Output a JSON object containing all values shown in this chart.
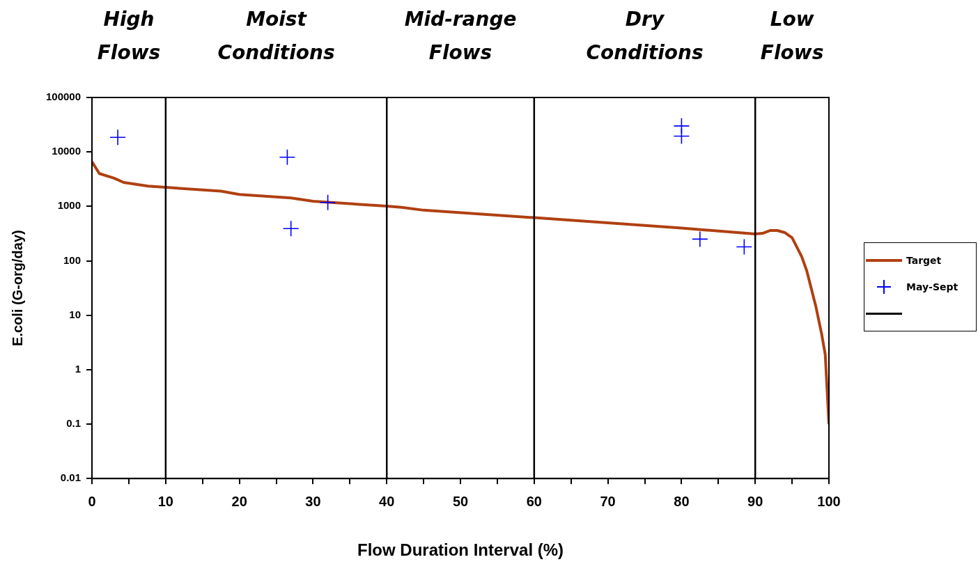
{
  "chart_data": {
    "type": "line",
    "xlabel": "Flow Duration Interval (%)",
    "ylabel": "E.coli (G-org/day)",
    "log": "y",
    "xlim": [
      0,
      100
    ],
    "ylim": [
      0.01,
      100000
    ],
    "xticks": [
      0,
      {
        "value": 5,
        "label": null
      },
      10,
      {
        "value": 15,
        "label": null
      },
      20,
      {
        "value": 25,
        "label": null
      },
      30,
      {
        "value": 35,
        "label": null
      },
      40,
      {
        "value": 45,
        "label": null
      },
      50,
      {
        "value": 55,
        "label": null
      },
      60,
      {
        "value": 65,
        "label": null
      },
      70,
      {
        "value": 75,
        "label": null
      },
      80,
      {
        "value": 85,
        "label": null
      },
      90,
      {
        "value": 95,
        "label": null
      },
      100
    ],
    "yticks": [
      0.01,
      0.1,
      1,
      10,
      100,
      1000,
      10000,
      100000
    ],
    "legend": "right",
    "series": [
      {
        "name": "Target",
        "marker": "none",
        "color": "#b04010",
        "x": [
          0,
          1,
          3,
          4.3,
          7.6,
          10,
          17.5,
          20,
          27,
          30,
          40,
          42,
          45,
          60,
          80,
          90,
          91,
          92,
          93,
          94,
          95,
          96.3,
          97,
          98.2,
          99,
          99.5,
          100
        ],
        "values": [
          6600,
          4000,
          3300,
          2750,
          2350,
          2230,
          1900,
          1650,
          1430,
          1240,
          1010,
          960,
          850,
          620,
          400,
          310,
          320,
          360,
          360,
          330,
          265,
          120,
          65,
          15,
          4.6,
          1.9,
          0.1
        ]
      },
      {
        "name": "May-Sept",
        "type": "scatter",
        "marker": "cross",
        "color": "#0000ff",
        "x": [
          3.5,
          26.5,
          27,
          32,
          80,
          80,
          82.5,
          88.5
        ],
        "values": [
          18500,
          8000,
          390,
          1180,
          30000,
          19500,
          250,
          180
        ]
      }
    ],
    "ref_lines": [
      {
        "axis": "x",
        "value": 10,
        "color": "#000000"
      },
      {
        "axis": "x",
        "value": 40,
        "color": "#000000"
      },
      {
        "axis": "x",
        "value": 60,
        "color": "#000000"
      },
      {
        "axis": "x",
        "value": 90,
        "color": "#000000"
      }
    ],
    "annotations": [
      "High\nFlows",
      "Moist\nConditions",
      "Mid-range\nFlows",
      "Dry\nConditions",
      "Low\nFlows"
    ]
  }
}
